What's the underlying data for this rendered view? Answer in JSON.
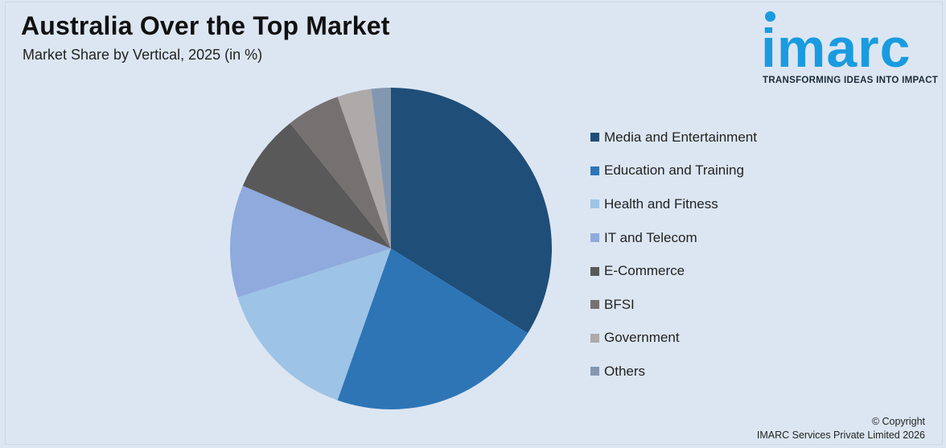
{
  "header": {
    "title": "Australia Over the Top Market",
    "subtitle": "Market Share by Vertical, 2025 (in %)"
  },
  "logo": {
    "word": "imarc",
    "tagline": "TRANSFORMING IDEAS INTO IMPACT",
    "color": "#1a9be0"
  },
  "footer": {
    "copyright_line1": "© Copyright",
    "copyright_line2": "IMARC Services Private Limited 2026"
  },
  "chart_data": {
    "type": "pie",
    "legend_position": "right",
    "start_angle_deg": 0,
    "direction": "clockwise",
    "slices": [
      {
        "label": "Media and Entertainment",
        "value": 34.5,
        "color": "#1f4e79"
      },
      {
        "label": "Education and Training",
        "value": 22.0,
        "color": "#2e75b6"
      },
      {
        "label": "Health and Fitness",
        "value": 15.0,
        "color": "#9dc3e6"
      },
      {
        "label": "IT and Telecom",
        "value": 11.5,
        "color": "#8faadc"
      },
      {
        "label": "E-Commerce",
        "value": 8.0,
        "color": "#595959"
      },
      {
        "label": "BFSI",
        "value": 5.5,
        "color": "#767171"
      },
      {
        "label": "Government",
        "value": 3.5,
        "color": "#aeaaaa"
      },
      {
        "label": "Others",
        "value": 2.0,
        "color": "#8497b0"
      }
    ]
  }
}
